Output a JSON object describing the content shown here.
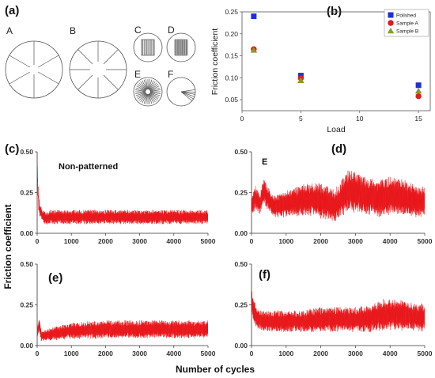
{
  "panel_labels": {
    "a": "(a)",
    "b": "(b)",
    "c": "(c)",
    "d": "(d)",
    "e": "(e)",
    "f": "(f)"
  },
  "shapes": {
    "A": "A",
    "B": "B",
    "C": "C",
    "D": "D",
    "E": "E",
    "F": "F"
  },
  "bottom_panels": {
    "ylabel": "Friction coefficient",
    "xlabel": "Number of cycles",
    "yticks": [
      "0.00",
      "0.25",
      "0.50"
    ],
    "xticks": [
      "0",
      "1000",
      "2000",
      "3000",
      "4000",
      "5000"
    ],
    "c_annotation": "Non-patterned",
    "d_annotation": "E"
  },
  "chart_data": [
    {
      "id": "b",
      "type": "scatter",
      "xlabel": "Load",
      "ylabel": "Friction coefficient",
      "xlim": [
        0,
        16
      ],
      "ylim": [
        0.025,
        0.25
      ],
      "xticks": [
        "0",
        "5",
        "10",
        "15"
      ],
      "yticks": [
        "0.05",
        "0.10",
        "0.15",
        "0.20",
        "0.25"
      ],
      "legend_position": "top-right",
      "series": [
        {
          "name": "Polished",
          "marker": "square",
          "color": "#1f2fd6",
          "x": [
            1,
            5,
            15
          ],
          "y": [
            0.24,
            0.105,
            0.083
          ]
        },
        {
          "name": "Sample A",
          "marker": "circle",
          "color": "#e21b1b",
          "x": [
            1,
            5,
            15
          ],
          "y": [
            0.165,
            0.099,
            0.058
          ]
        },
        {
          "name": "Sample B",
          "marker": "triangle",
          "color": "#8c9a2a",
          "x": [
            1,
            5,
            15
          ],
          "y": [
            0.163,
            0.094,
            0.07
          ]
        }
      ]
    },
    {
      "id": "c",
      "type": "line",
      "series_color": "#e8171b",
      "xlim": [
        0,
        5000
      ],
      "ylim": [
        0,
        0.5
      ],
      "x": [
        0,
        15,
        40,
        80,
        150,
        250,
        400,
        600,
        1000,
        1500,
        2000,
        2500,
        3000,
        3500,
        4000,
        4500,
        5000
      ],
      "mean": [
        0.48,
        0.3,
        0.2,
        0.14,
        0.11,
        0.09,
        0.1,
        0.1,
        0.1,
        0.1,
        0.1,
        0.1,
        0.1,
        0.1,
        0.1,
        0.1,
        0.1
      ],
      "band": [
        0.05,
        0.05,
        0.05,
        0.04,
        0.03,
        0.035,
        0.04,
        0.04,
        0.04,
        0.04,
        0.04,
        0.04,
        0.04,
        0.04,
        0.04,
        0.04,
        0.04
      ]
    },
    {
      "id": "d",
      "type": "line",
      "series_color": "#e8171b",
      "xlim": [
        0,
        5000
      ],
      "ylim": [
        0,
        0.5
      ],
      "x": [
        0,
        100,
        250,
        350,
        450,
        600,
        800,
        1200,
        1600,
        2000,
        2400,
        2800,
        3200,
        3600,
        4000,
        4400,
        4800,
        5000
      ],
      "mean": [
        0.16,
        0.22,
        0.18,
        0.27,
        0.22,
        0.17,
        0.17,
        0.19,
        0.21,
        0.2,
        0.17,
        0.26,
        0.24,
        0.21,
        0.23,
        0.22,
        0.19,
        0.2
      ],
      "band": [
        0.05,
        0.07,
        0.06,
        0.07,
        0.07,
        0.06,
        0.07,
        0.08,
        0.09,
        0.1,
        0.09,
        0.12,
        0.11,
        0.1,
        0.11,
        0.1,
        0.09,
        0.08
      ]
    },
    {
      "id": "e",
      "type": "line",
      "series_color": "#e8171b",
      "xlim": [
        0,
        5000
      ],
      "ylim": [
        0,
        0.5
      ],
      "x": [
        0,
        60,
        120,
        200,
        400,
        700,
        1000,
        1500,
        2000,
        2500,
        3000,
        3500,
        4000,
        4500,
        5000
      ],
      "mean": [
        0.08,
        0.13,
        0.06,
        0.06,
        0.07,
        0.08,
        0.09,
        0.095,
        0.1,
        0.1,
        0.1,
        0.1,
        0.1,
        0.1,
        0.1
      ],
      "band": [
        0.03,
        0.04,
        0.03,
        0.03,
        0.035,
        0.04,
        0.045,
        0.05,
        0.05,
        0.05,
        0.05,
        0.05,
        0.05,
        0.05,
        0.05
      ]
    },
    {
      "id": "f",
      "type": "line",
      "series_color": "#e8171b",
      "xlim": [
        0,
        5000
      ],
      "ylim": [
        0,
        0.5
      ],
      "x": [
        0,
        50,
        150,
        300,
        600,
        1000,
        1500,
        2000,
        2500,
        3000,
        3500,
        3800,
        4200,
        4600,
        5000
      ],
      "mean": [
        0.3,
        0.22,
        0.17,
        0.15,
        0.15,
        0.15,
        0.15,
        0.16,
        0.16,
        0.16,
        0.17,
        0.19,
        0.19,
        0.18,
        0.17
      ],
      "band": [
        0.06,
        0.07,
        0.06,
        0.06,
        0.06,
        0.06,
        0.06,
        0.07,
        0.07,
        0.07,
        0.08,
        0.09,
        0.09,
        0.08,
        0.08
      ]
    }
  ]
}
